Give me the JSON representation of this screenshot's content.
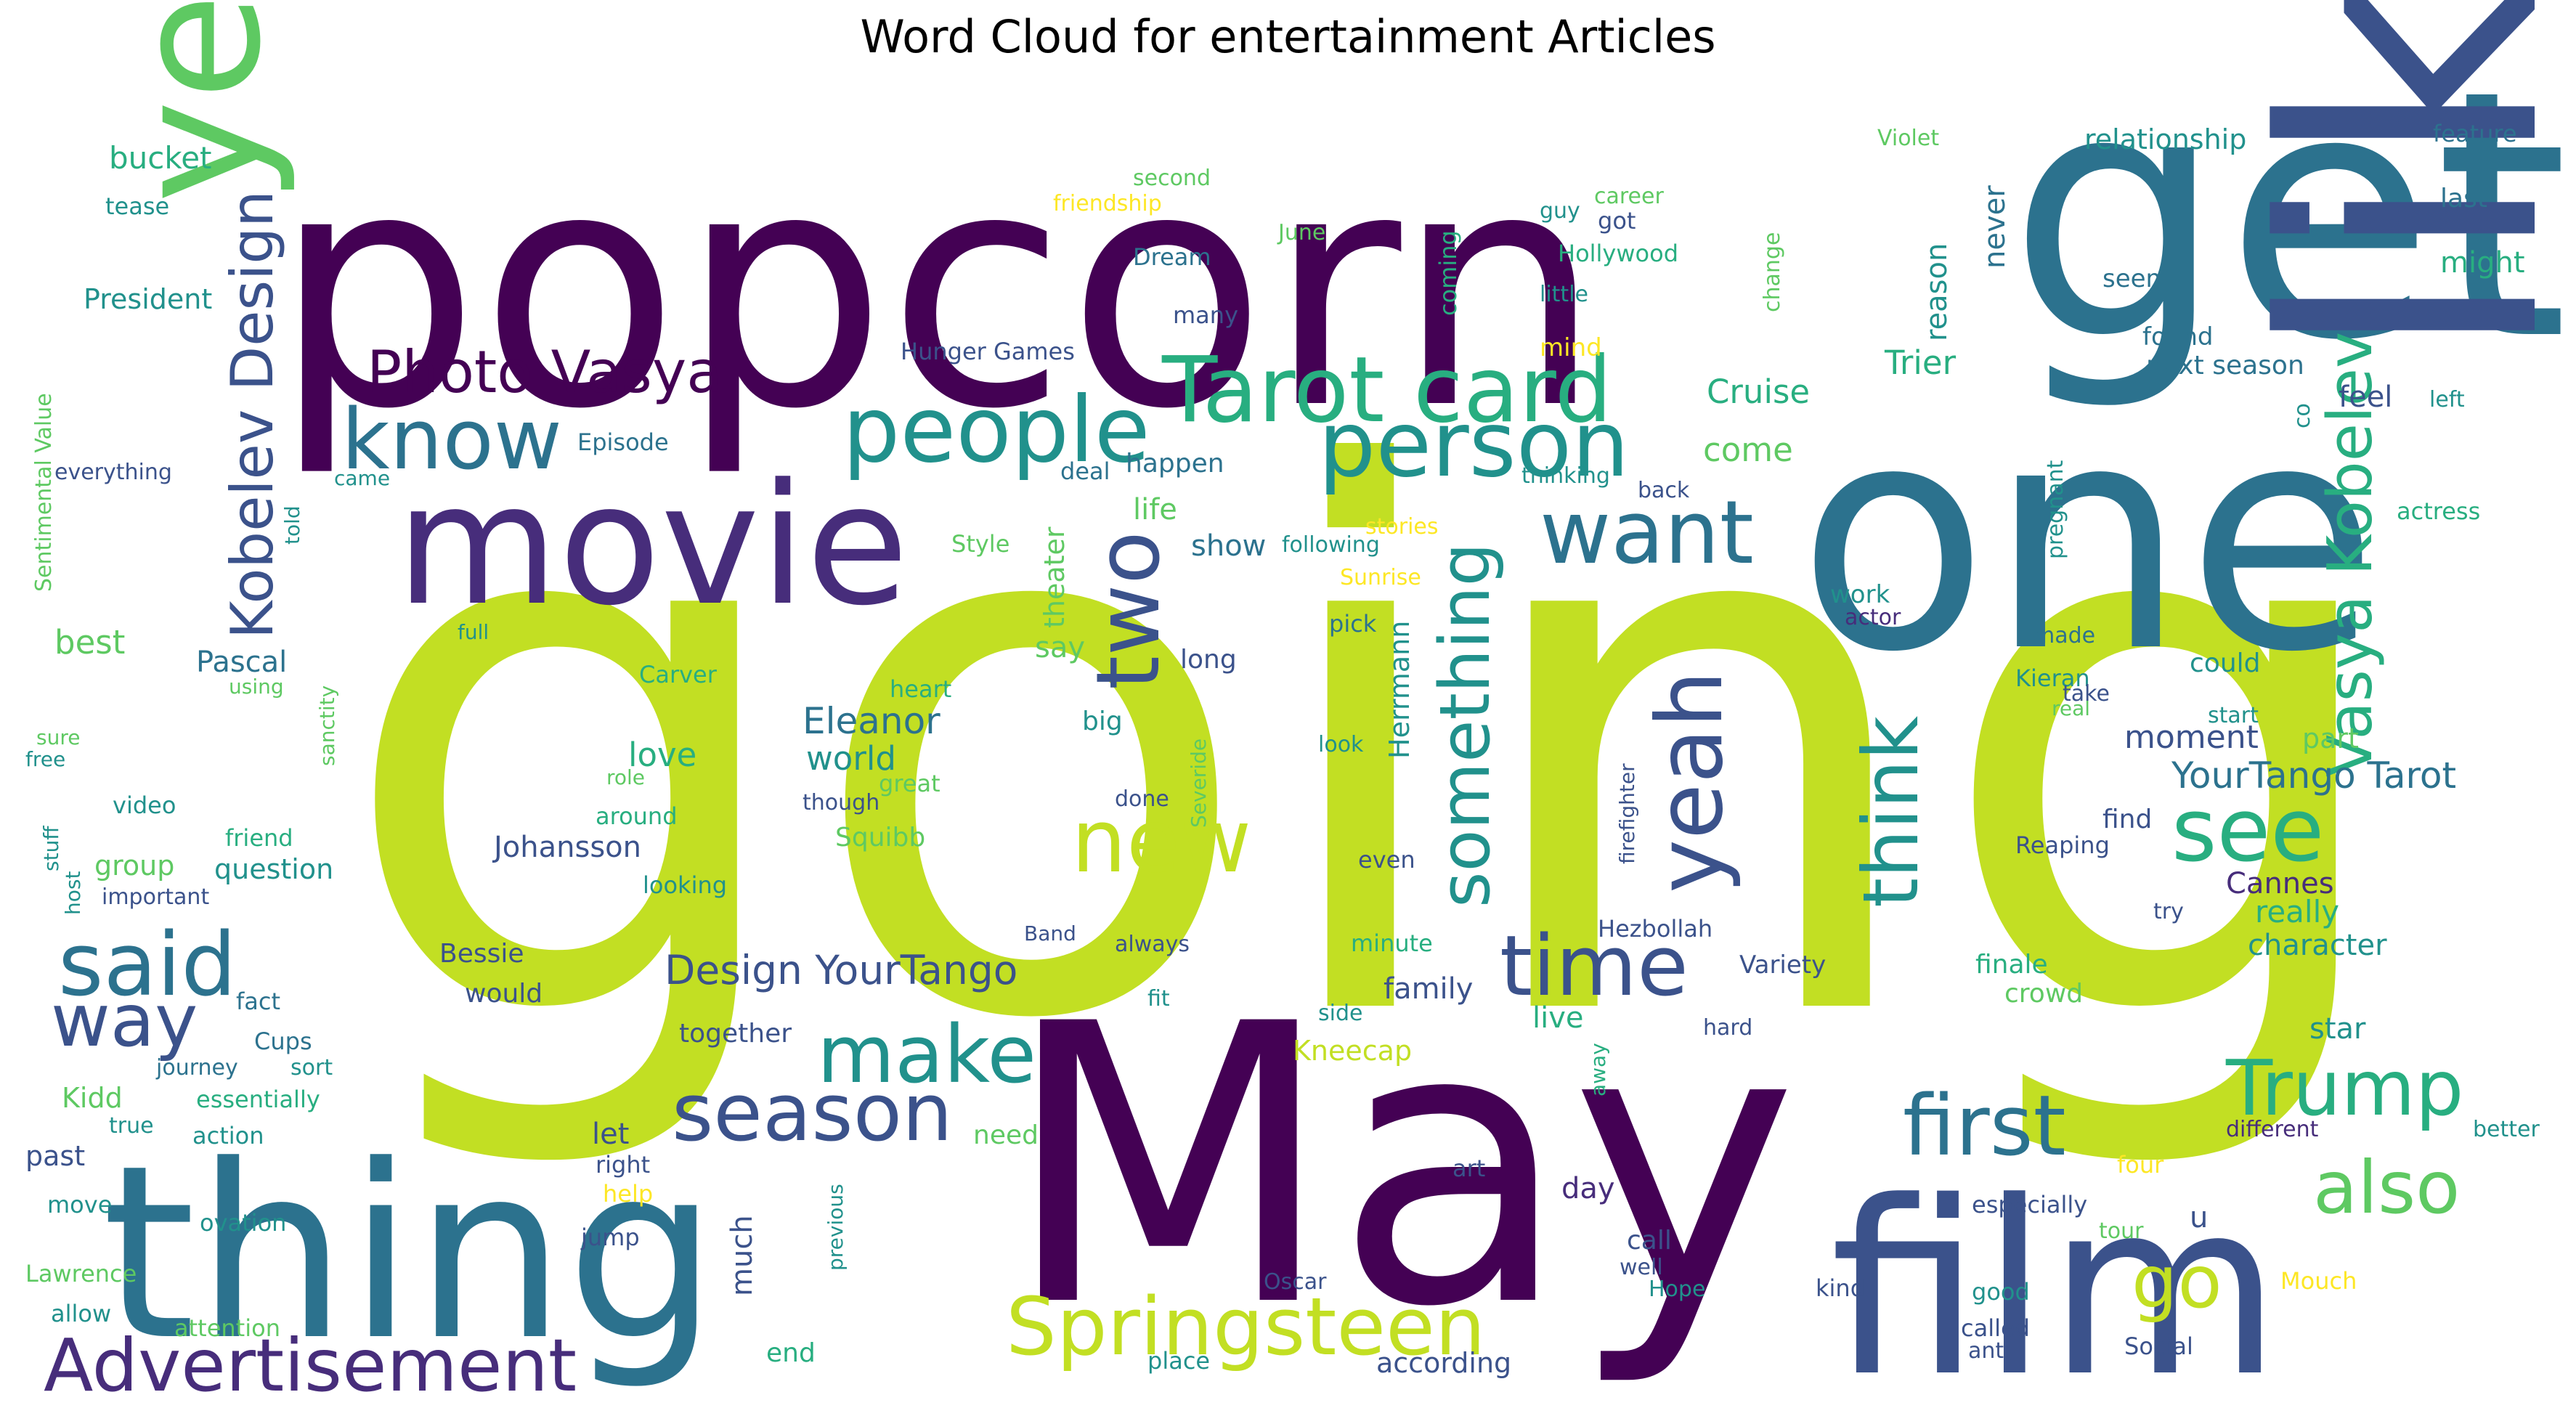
{
  "title": "Word Cloud for entertainment Articles",
  "palette": {
    "dark_purple": "#440154",
    "purple": "#472d7b",
    "indigo": "#3b528b",
    "blue": "#2c728e",
    "teal": "#21918c",
    "green": "#28ae80",
    "light_green": "#5ec962",
    "lime": "#addc30",
    "yellow_green": "#c2df23",
    "yellow": "#fde725"
  },
  "words": [
    {
      "text": "going",
      "c": "yellow_green"
    },
    {
      "text": "popcorn",
      "c": "dark_purple"
    },
    {
      "text": "May",
      "c": "dark_purple"
    },
    {
      "text": "one",
      "c": "blue"
    },
    {
      "text": "get",
      "c": "blue"
    },
    {
      "text": "like",
      "c": "indigo"
    },
    {
      "text": "film",
      "c": "indigo"
    },
    {
      "text": "thing",
      "c": "blue"
    },
    {
      "text": "year",
      "c": "light_green"
    },
    {
      "text": "movie",
      "c": "purple"
    },
    {
      "text": "people",
      "c": "teal"
    },
    {
      "text": "Tarot card",
      "c": "green"
    },
    {
      "text": "person",
      "c": "teal"
    },
    {
      "text": "know",
      "c": "blue"
    },
    {
      "text": "Photo Vasya",
      "c": "dark_purple"
    },
    {
      "text": "Kobelev Design",
      "c": "indigo"
    },
    {
      "text": "want",
      "c": "blue"
    },
    {
      "text": "new",
      "c": "yellow_green"
    },
    {
      "text": "two",
      "c": "indigo"
    },
    {
      "text": "something",
      "c": "teal"
    },
    {
      "text": "yeah",
      "c": "indigo"
    },
    {
      "text": "think",
      "c": "teal"
    },
    {
      "text": "see",
      "c": "green"
    },
    {
      "text": "Vasya Kobelev",
      "c": "green"
    },
    {
      "text": "said",
      "c": "blue"
    },
    {
      "text": "way",
      "c": "indigo"
    },
    {
      "text": "make",
      "c": "teal"
    },
    {
      "text": "time",
      "c": "indigo"
    },
    {
      "text": "season",
      "c": "indigo"
    },
    {
      "text": "first",
      "c": "blue"
    },
    {
      "text": "Trump",
      "c": "green"
    },
    {
      "text": "also",
      "c": "light_green"
    },
    {
      "text": "go",
      "c": "yellow_green"
    },
    {
      "text": "Springsteen",
      "c": "yellow_green"
    },
    {
      "text": "Advertisement",
      "c": "purple"
    },
    {
      "text": "YourTango Tarot",
      "c": "blue"
    },
    {
      "text": "Design YourTango",
      "c": "indigo"
    },
    {
      "text": "Eleanor",
      "c": "blue"
    },
    {
      "text": "world",
      "c": "teal"
    },
    {
      "text": "Cruise",
      "c": "green"
    },
    {
      "text": "come",
      "c": "light_green"
    },
    {
      "text": "Trier",
      "c": "green"
    },
    {
      "text": "reason",
      "c": "teal"
    },
    {
      "text": "never",
      "c": "blue"
    },
    {
      "text": "relationship",
      "c": "teal"
    },
    {
      "text": "feature",
      "c": "blue"
    },
    {
      "text": "last",
      "c": "blue"
    },
    {
      "text": "might",
      "c": "green"
    },
    {
      "text": "seem",
      "c": "blue"
    },
    {
      "text": "found",
      "c": "blue"
    },
    {
      "text": "next season",
      "c": "blue"
    },
    {
      "text": "feel",
      "c": "indigo"
    },
    {
      "text": "left",
      "c": "teal"
    },
    {
      "text": "co",
      "c": "teal"
    },
    {
      "text": "actress",
      "c": "green"
    },
    {
      "text": "pregnant",
      "c": "teal"
    },
    {
      "text": "bucket",
      "c": "green"
    },
    {
      "text": "tease",
      "c": "teal"
    },
    {
      "text": "President",
      "c": "teal"
    },
    {
      "text": "Sentimental Value",
      "c": "light_green"
    },
    {
      "text": "everything",
      "c": "indigo"
    },
    {
      "text": "told",
      "c": "teal"
    },
    {
      "text": "Episode",
      "c": "blue"
    },
    {
      "text": "came",
      "c": "teal"
    },
    {
      "text": "best",
      "c": "light_green"
    },
    {
      "text": "Pascal",
      "c": "blue"
    },
    {
      "text": "using",
      "c": "light_green"
    },
    {
      "text": "sure",
      "c": "light_green"
    },
    {
      "text": "free",
      "c": "teal"
    },
    {
      "text": "sanctity",
      "c": "light_green"
    },
    {
      "text": "stuff",
      "c": "teal"
    },
    {
      "text": "video",
      "c": "teal"
    },
    {
      "text": "friend",
      "c": "green"
    },
    {
      "text": "host",
      "c": "teal"
    },
    {
      "text": "group",
      "c": "light_green"
    },
    {
      "text": "question",
      "c": "teal"
    },
    {
      "text": "important",
      "c": "indigo"
    },
    {
      "text": "Kidd",
      "c": "light_green"
    },
    {
      "text": "journey",
      "c": "blue"
    },
    {
      "text": "sort",
      "c": "teal"
    },
    {
      "text": "Cups",
      "c": "blue"
    },
    {
      "text": "fact",
      "c": "blue"
    },
    {
      "text": "essentially",
      "c": "green"
    },
    {
      "text": "action",
      "c": "teal"
    },
    {
      "text": "true",
      "c": "teal"
    },
    {
      "text": "past",
      "c": "indigo"
    },
    {
      "text": "right",
      "c": "indigo"
    },
    {
      "text": "help",
      "c": "yellow"
    },
    {
      "text": "move",
      "c": "teal"
    },
    {
      "text": "ovation",
      "c": "teal"
    },
    {
      "text": "Lawrence",
      "c": "light_green"
    },
    {
      "text": "allow",
      "c": "teal"
    },
    {
      "text": "attention",
      "c": "light_green"
    },
    {
      "text": "end",
      "c": "green"
    },
    {
      "text": "previous",
      "c": "teal"
    },
    {
      "text": "jump",
      "c": "indigo"
    },
    {
      "text": "much",
      "c": "indigo"
    },
    {
      "text": "need",
      "c": "light_green"
    },
    {
      "text": "let",
      "c": "indigo"
    },
    {
      "text": "love",
      "c": "green"
    },
    {
      "text": "Johansson",
      "c": "indigo"
    },
    {
      "text": "looking",
      "c": "teal"
    },
    {
      "text": "around",
      "c": "green"
    },
    {
      "text": "role",
      "c": "light_green"
    },
    {
      "text": "Carver",
      "c": "green"
    },
    {
      "text": "heart",
      "c": "green"
    },
    {
      "text": "great",
      "c": "light_green"
    },
    {
      "text": "full",
      "c": "teal"
    },
    {
      "text": "Bessie",
      "c": "indigo"
    },
    {
      "text": "would",
      "c": "indigo"
    },
    {
      "text": "together",
      "c": "indigo"
    },
    {
      "text": "Squibb",
      "c": "light_green"
    },
    {
      "text": "though",
      "c": "indigo"
    },
    {
      "text": "done",
      "c": "indigo"
    },
    {
      "text": "Severide",
      "c": "light_green"
    },
    {
      "text": "big",
      "c": "teal"
    },
    {
      "text": "Band",
      "c": "indigo"
    },
    {
      "text": "always",
      "c": "indigo"
    },
    {
      "text": "fit",
      "c": "teal"
    },
    {
      "text": "minute",
      "c": "green"
    },
    {
      "text": "family",
      "c": "indigo"
    },
    {
      "text": "side",
      "c": "teal"
    },
    {
      "text": "live",
      "c": "green"
    },
    {
      "text": "Kneecap",
      "c": "yellow_green"
    },
    {
      "text": "art",
      "c": "indigo"
    },
    {
      "text": "Oscar",
      "c": "indigo"
    },
    {
      "text": "place",
      "c": "teal"
    },
    {
      "text": "according",
      "c": "indigo"
    },
    {
      "text": "day",
      "c": "purple"
    },
    {
      "text": "call",
      "c": "indigo"
    },
    {
      "text": "well",
      "c": "indigo"
    },
    {
      "text": "Hope",
      "c": "teal"
    },
    {
      "text": "hard",
      "c": "indigo"
    },
    {
      "text": "away",
      "c": "green"
    },
    {
      "text": "firefighter",
      "c": "indigo"
    },
    {
      "text": "Hezbollah",
      "c": "indigo"
    },
    {
      "text": "Variety",
      "c": "indigo"
    },
    {
      "text": "look",
      "c": "teal"
    },
    {
      "text": "even",
      "c": "indigo"
    },
    {
      "text": "long",
      "c": "indigo"
    },
    {
      "text": "Herrmann",
      "c": "teal"
    },
    {
      "text": "pick",
      "c": "blue"
    },
    {
      "text": "Sunrise",
      "c": "yellow"
    },
    {
      "text": "following",
      "c": "teal"
    },
    {
      "text": "show",
      "c": "blue"
    },
    {
      "text": "stories",
      "c": "yellow"
    },
    {
      "text": "theater",
      "c": "light_green"
    },
    {
      "text": "say",
      "c": "light_green"
    },
    {
      "text": "life",
      "c": "light_green"
    },
    {
      "text": "happen",
      "c": "blue"
    },
    {
      "text": "deal",
      "c": "blue"
    },
    {
      "text": "Style",
      "c": "light_green"
    },
    {
      "text": "Hunger Games",
      "c": "indigo"
    },
    {
      "text": "Dream",
      "c": "blue"
    },
    {
      "text": "many",
      "c": "indigo"
    },
    {
      "text": "second",
      "c": "light_green"
    },
    {
      "text": "friendship",
      "c": "yellow"
    },
    {
      "text": "June",
      "c": "light_green"
    },
    {
      "text": "guy",
      "c": "teal"
    },
    {
      "text": "career",
      "c": "light_green"
    },
    {
      "text": "got",
      "c": "indigo"
    },
    {
      "text": "Hollywood",
      "c": "green"
    },
    {
      "text": "little",
      "c": "teal"
    },
    {
      "text": "mind",
      "c": "yellow"
    },
    {
      "text": "coming",
      "c": "green"
    },
    {
      "text": "change",
      "c": "light_green"
    },
    {
      "text": "thinking",
      "c": "teal"
    },
    {
      "text": "back",
      "c": "indigo"
    },
    {
      "text": "Violet",
      "c": "light_green"
    },
    {
      "text": "work",
      "c": "teal"
    },
    {
      "text": "actor",
      "c": "purple"
    },
    {
      "text": "made",
      "c": "blue"
    },
    {
      "text": "Kieran",
      "c": "teal"
    },
    {
      "text": "real",
      "c": "light_green"
    },
    {
      "text": "take",
      "c": "indigo"
    },
    {
      "text": "could",
      "c": "teal"
    },
    {
      "text": "start",
      "c": "teal"
    },
    {
      "text": "moment",
      "c": "indigo"
    },
    {
      "text": "part",
      "c": "light_green"
    },
    {
      "text": "find",
      "c": "indigo"
    },
    {
      "text": "Reaping",
      "c": "indigo"
    },
    {
      "text": "Cannes",
      "c": "purple"
    },
    {
      "text": "really",
      "c": "green"
    },
    {
      "text": "try",
      "c": "indigo"
    },
    {
      "text": "character",
      "c": "teal"
    },
    {
      "text": "finale",
      "c": "green"
    },
    {
      "text": "crowd",
      "c": "light_green"
    },
    {
      "text": "star",
      "c": "teal"
    },
    {
      "text": "different",
      "c": "purple"
    },
    {
      "text": "better",
      "c": "teal"
    },
    {
      "text": "four",
      "c": "yellow"
    },
    {
      "text": "especially",
      "c": "indigo"
    },
    {
      "text": "tour",
      "c": "light_green"
    },
    {
      "text": "u",
      "c": "indigo"
    },
    {
      "text": "kind",
      "c": "indigo"
    },
    {
      "text": "good",
      "c": "teal"
    },
    {
      "text": "Mouch",
      "c": "yellow"
    },
    {
      "text": "called",
      "c": "indigo"
    },
    {
      "text": "anti",
      "c": "indigo"
    },
    {
      "text": "Social",
      "c": "indigo"
    }
  ]
}
